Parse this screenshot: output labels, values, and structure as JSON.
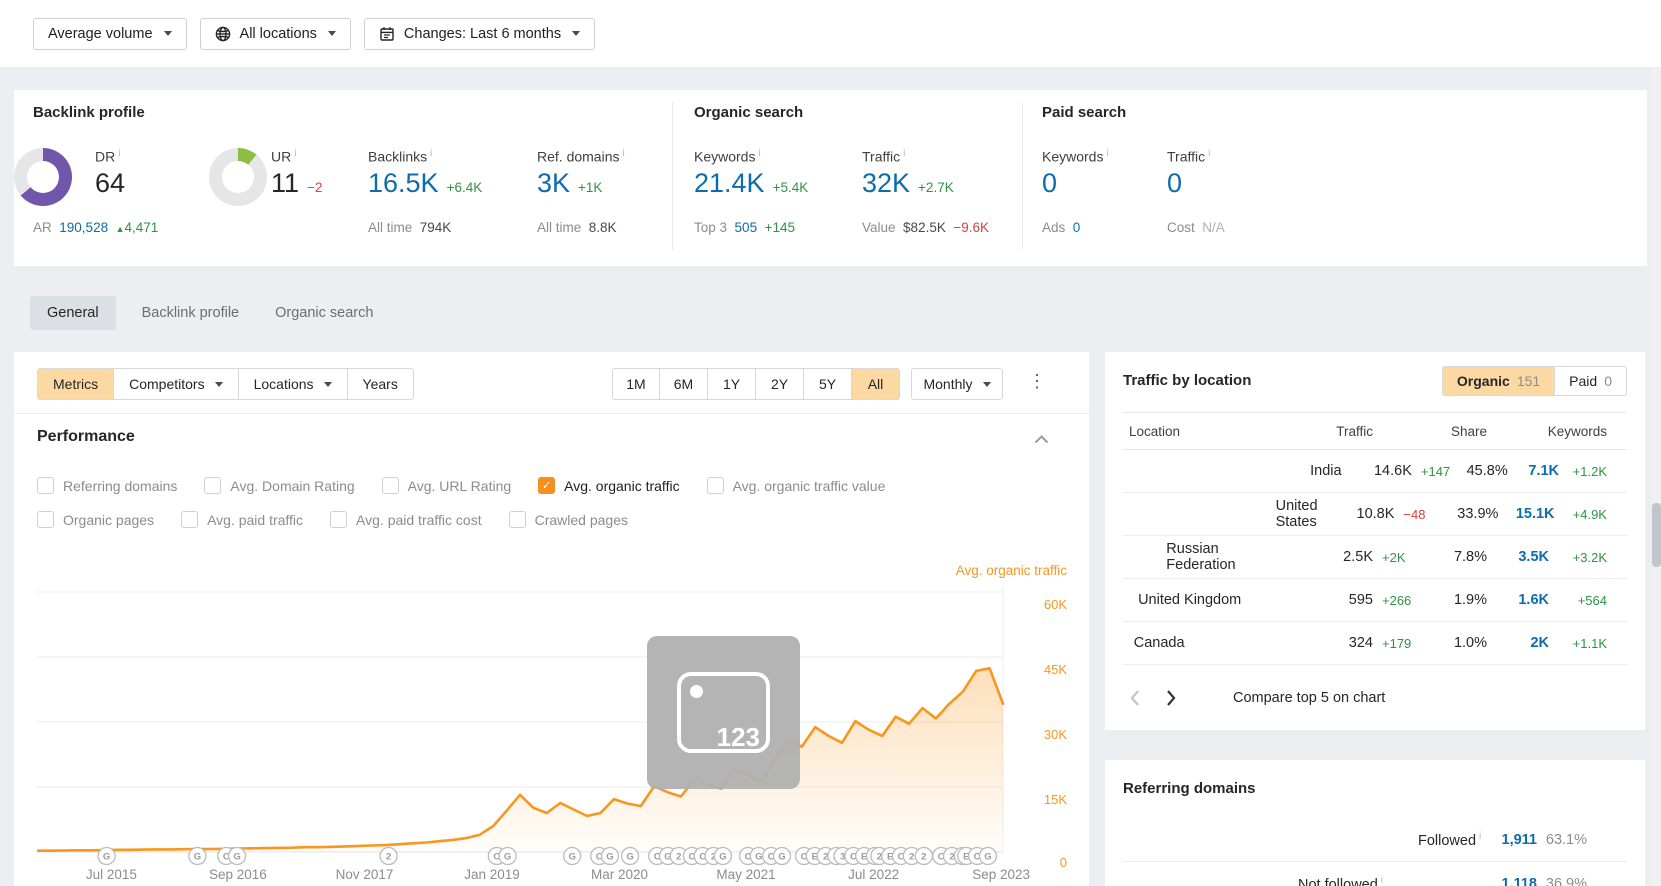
{
  "toolbar": {
    "volume_label": "Average volume",
    "locations_label": "All locations",
    "changes_label": "Changes: Last 6 months"
  },
  "stats": {
    "backlink_profile": {
      "title": "Backlink profile",
      "dr": {
        "label": "DR",
        "value": "64"
      },
      "ar": {
        "label": "AR",
        "value": "190,528",
        "change": "4,471",
        "dir": "up"
      },
      "ur": {
        "label": "UR",
        "value": "11",
        "change": "−2",
        "dir": "down"
      },
      "backlinks": {
        "label": "Backlinks",
        "value": "16.5K",
        "change": "+6.4K",
        "dir": "up",
        "sub_label": "All time",
        "sub_value": "794K",
        "sub_style": "dark"
      },
      "ref_domains": {
        "label": "Ref. domains",
        "value": "3K",
        "change": "+1K",
        "dir": "up",
        "sub_label": "All time",
        "sub_value": "8.8K",
        "sub_style": "dark"
      }
    },
    "organic_search": {
      "title": "Organic search",
      "keywords": {
        "label": "Keywords",
        "value": "21.4K",
        "change": "+5.4K",
        "dir": "up",
        "sub_label": "Top 3",
        "sub_value": "505",
        "sub_style": "blue",
        "sub_change": "+145",
        "sub_dir": "up"
      },
      "traffic": {
        "label": "Traffic",
        "value": "32K",
        "change": "+2.7K",
        "dir": "up",
        "sub_label": "Value",
        "sub_value": "$82.5K",
        "sub_style": "dark",
        "sub_change": "−9.6K",
        "sub_dir": "down"
      }
    },
    "paid_search": {
      "title": "Paid search",
      "keywords": {
        "label": "Keywords",
        "value": "0",
        "sub_label": "Ads",
        "sub_value": "0",
        "sub_style": "blue"
      },
      "traffic": {
        "label": "Traffic",
        "value": "0",
        "sub_label": "Cost",
        "sub_value": "N/A",
        "sub_style": "muted"
      }
    }
  },
  "tabs": {
    "items": [
      "General",
      "Backlink profile",
      "Organic search"
    ],
    "active": "General"
  },
  "chart_panel": {
    "filters": [
      "Metrics",
      "Competitors",
      "Locations",
      "Years"
    ],
    "active_filter": "Metrics",
    "ranges": [
      "1M",
      "6M",
      "1Y",
      "2Y",
      "5Y",
      "All"
    ],
    "active_range": "All",
    "granularity": "Monthly",
    "more_icon": "⋮",
    "section_title": "Performance",
    "metric_rows": [
      [
        {
          "label": "Referring domains",
          "checked": false
        },
        {
          "label": "Avg. Domain Rating",
          "checked": false
        },
        {
          "label": "Avg. URL Rating",
          "checked": false
        },
        {
          "label": "Avg. organic traffic",
          "checked": true
        },
        {
          "label": "Avg. organic traffic value",
          "checked": false
        }
      ],
      [
        {
          "label": "Organic pages",
          "checked": false
        },
        {
          "label": "Avg. paid traffic",
          "checked": false
        },
        {
          "label": "Avg. paid traffic cost",
          "checked": false
        },
        {
          "label": "Crawled pages",
          "checked": false
        }
      ]
    ]
  },
  "chart_data": {
    "type": "area",
    "series_label": "Avg. organic traffic",
    "unit": "thousands",
    "ylim": [
      0,
      60000
    ],
    "y_ticks": [
      {
        "label": "60K",
        "value": 60
      },
      {
        "label": "45K",
        "value": 45
      },
      {
        "label": "30K",
        "value": 30
      },
      {
        "label": "15K",
        "value": 15
      }
    ],
    "zero_label": "0",
    "x_ticks": [
      {
        "label": "Jul 2015",
        "pct": 7.7
      },
      {
        "label": "Sep 2016",
        "pct": 20.8
      },
      {
        "label": "Nov 2017",
        "pct": 33.9
      },
      {
        "label": "Jan 2019",
        "pct": 47.1
      },
      {
        "label": "Mar 2020",
        "pct": 60.3
      },
      {
        "label": "May 2021",
        "pct": 73.4
      },
      {
        "label": "Jul 2022",
        "pct": 86.6
      },
      {
        "label": "Sep 2023",
        "pct": 99.8
      }
    ],
    "values_k": [
      0.3,
      0.3,
      0.35,
      0.4,
      0.4,
      0.45,
      0.5,
      0.5,
      0.55,
      0.6,
      0.6,
      0.65,
      0.7,
      0.7,
      0.75,
      0.8,
      0.85,
      0.9,
      0.95,
      1.0,
      1.1,
      1.1,
      1.2,
      1.3,
      1.4,
      1.5,
      1.6,
      1.8,
      2.0,
      2.2,
      2.5,
      2.8,
      3.2,
      4.0,
      6.0,
      9.5,
      13.2,
      10.2,
      9.0,
      11.3,
      9.8,
      8.3,
      9.0,
      12.2,
      11.2,
      10.6,
      15.2,
      13.8,
      12.8,
      16.8,
      15.6,
      14.6,
      19.2,
      17.6,
      16.2,
      21.5,
      26.0,
      24.3,
      28.8,
      26.8,
      25.2,
      30.2,
      28.2,
      26.8,
      31.2,
      29.6,
      33.2,
      30.8,
      34.2,
      37.0,
      41.8,
      42.4,
      34.2
    ],
    "google_update_markers": [
      {
        "pct": 7.2,
        "letters": [
          "G"
        ]
      },
      {
        "pct": 16.6,
        "letters": [
          "G"
        ]
      },
      {
        "pct": 19.6,
        "letters": [
          "C",
          "G"
        ]
      },
      {
        "pct": 36.4,
        "letters": [
          "2"
        ]
      },
      {
        "pct": 47.6,
        "letters": [
          "C",
          "G"
        ]
      },
      {
        "pct": 55.4,
        "letters": [
          "G"
        ]
      },
      {
        "pct": 58.2,
        "letters": [
          "C",
          "G"
        ]
      },
      {
        "pct": 61.4,
        "letters": [
          "G"
        ]
      },
      {
        "pct": 64.2,
        "letters": [
          "C",
          "G",
          "2"
        ]
      },
      {
        "pct": 67.8,
        "letters": [
          "C",
          "C",
          "2"
        ]
      },
      {
        "pct": 71.0,
        "letters": [
          "G"
        ]
      },
      {
        "pct": 73.6,
        "letters": [
          "C",
          "G"
        ]
      },
      {
        "pct": 76.0,
        "letters": [
          "C",
          "G"
        ]
      },
      {
        "pct": 79.4,
        "letters": [
          "C",
          "E",
          "2",
          "A"
        ]
      },
      {
        "pct": 83.4,
        "letters": [
          "3",
          "C",
          "E",
          "2"
        ]
      },
      {
        "pct": 87.2,
        "letters": [
          "2",
          "E",
          "C",
          "2"
        ]
      },
      {
        "pct": 91.8,
        "letters": [
          "2"
        ]
      },
      {
        "pct": 93.6,
        "letters": [
          "C",
          "2",
          "G"
        ]
      },
      {
        "pct": 96.2,
        "letters": [
          "E",
          "C",
          "G"
        ]
      }
    ],
    "line_color": "#f8961d"
  },
  "watermark": {
    "text": "123"
  },
  "traffic_by_location": {
    "title": "Traffic by location",
    "toggle": {
      "organic_label": "Organic",
      "organic_count": "151",
      "paid_label": "Paid",
      "paid_count": "0"
    },
    "headers": [
      "Location",
      "Traffic",
      "Share",
      "Keywords"
    ],
    "rows": [
      {
        "location": "India",
        "traffic": "14.6K",
        "traffic_change": "+147",
        "traffic_dir": "up",
        "share": "45.8%",
        "share_pct": 45.8,
        "keywords": "7.1K",
        "keywords_change": "+1.2K",
        "keywords_dir": "up"
      },
      {
        "location": "United States",
        "traffic": "10.8K",
        "traffic_change": "−48",
        "traffic_dir": "down",
        "share": "33.9%",
        "share_pct": 33.9,
        "keywords": "15.1K",
        "keywords_change": "+4.9K",
        "keywords_dir": "up"
      },
      {
        "location": "Russian Federation",
        "traffic": "2.5K",
        "traffic_change": "+2K",
        "traffic_dir": "up",
        "share": "7.8%",
        "share_pct": 7.8,
        "keywords": "3.5K",
        "keywords_change": "+3.2K",
        "keywords_dir": "up"
      },
      {
        "location": "United Kingdom",
        "traffic": "595",
        "traffic_change": "+266",
        "traffic_dir": "up",
        "share": "1.9%",
        "share_pct": 1.9,
        "keywords": "1.6K",
        "keywords_change": "+564",
        "keywords_dir": "up"
      },
      {
        "location": "Canada",
        "traffic": "324",
        "traffic_change": "+179",
        "traffic_dir": "up",
        "share": "1.0%",
        "share_pct": 1.0,
        "keywords": "2K",
        "keywords_change": "+1.1K",
        "keywords_dir": "up"
      }
    ],
    "pager": {
      "compare_label": "Compare top 5 on chart"
    }
  },
  "referring_domains": {
    "title": "Referring domains",
    "rows": [
      {
        "label": "Followed",
        "value": "1,911",
        "pct": "63.1%",
        "bar_pct": 63.1
      },
      {
        "label": "Not followed",
        "value": "1,118",
        "pct": "36.9%",
        "bar_pct": 36.9
      }
    ]
  },
  "colors": {
    "accent_orange": "#f8961d",
    "active_segment_bg": "#fcd9a3",
    "link_blue": "#0d6cad",
    "positive_green": "#2f9342",
    "negative_red": "#d6423c",
    "dr_donut_purple": "#7156ab",
    "ur_donut_green": "#8cbf41"
  }
}
